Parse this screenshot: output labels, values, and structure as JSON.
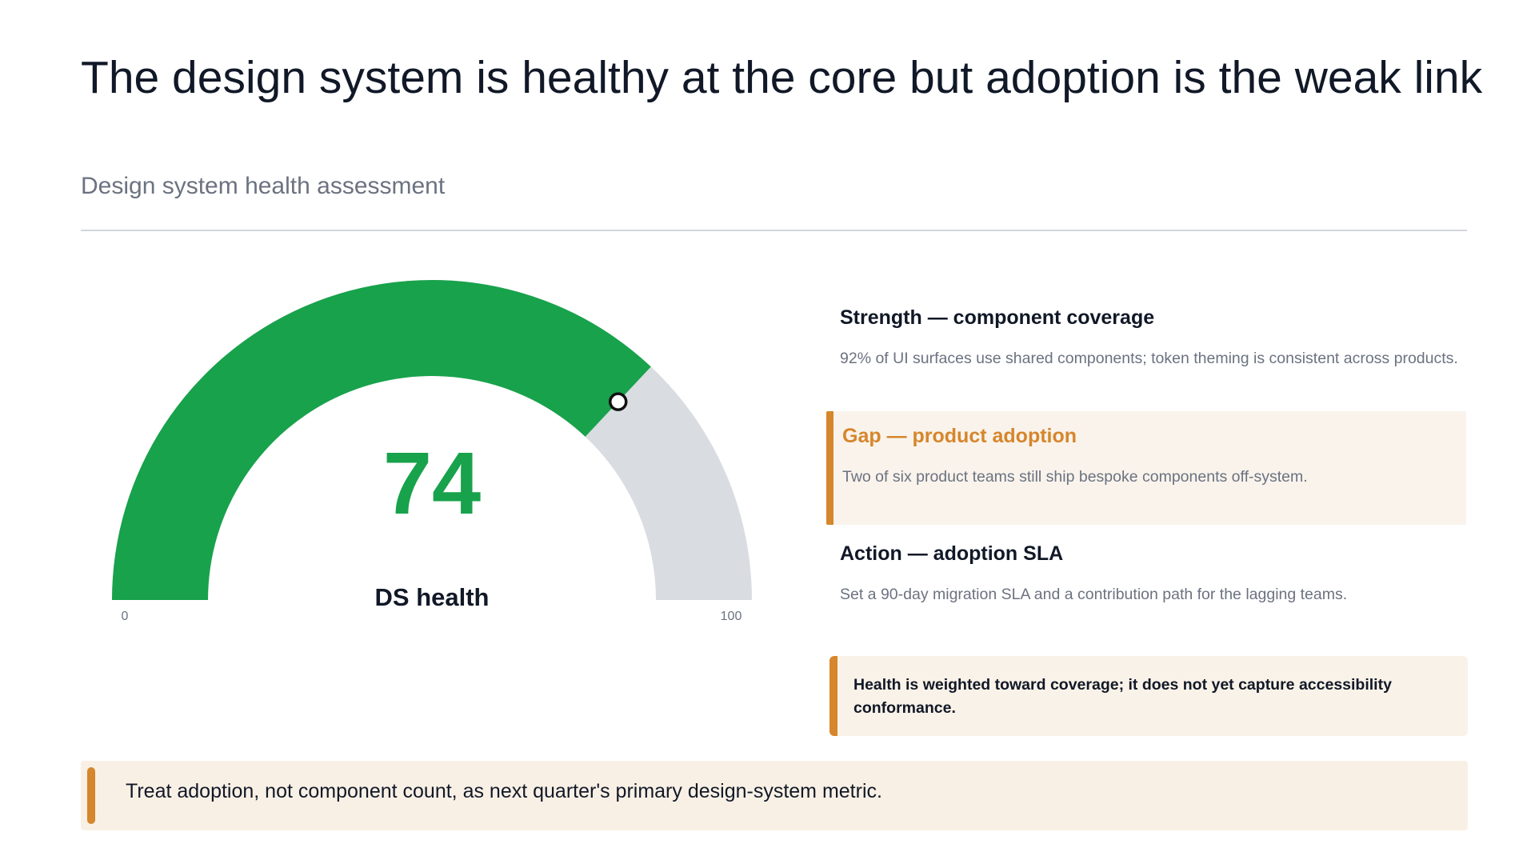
{
  "header": {
    "title": "The design system is healthy at the core but adoption is the weak link",
    "subtitle": "Design system health assessment"
  },
  "chart_data": {
    "type": "gauge",
    "value": 74,
    "min": 0,
    "max": 100,
    "label": "DS health",
    "min_label": "0",
    "max_label": "100",
    "colors": {
      "fill": "#18a24b",
      "track": "#d9dce1",
      "marker_fill": "#ffffff",
      "marker_stroke": "#111111"
    }
  },
  "findings": [
    {
      "heading": "Strength — component coverage",
      "body": "92% of UI surfaces use shared components; token theming is consistent across products.",
      "highlight": false
    },
    {
      "heading": "Gap — product adoption",
      "body": "Two of six product teams still ship bespoke components off-system.",
      "highlight": true
    },
    {
      "heading": "Action — adoption SLA",
      "body": "Set a 90-day migration SLA and a contribution path for the lagging teams.",
      "highlight": false
    }
  ],
  "note": {
    "text": "Health is weighted toward coverage; it does not yet capture accessibility conformance."
  },
  "takeaway": {
    "text": "Treat adoption, not component count, as next quarter's primary design-system metric."
  },
  "colors": {
    "accent": "#d6862c",
    "highlight_bg": "#f9f3ec",
    "text": "#111827",
    "muted": "#6b7280"
  }
}
